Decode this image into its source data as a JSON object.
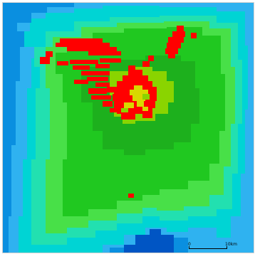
{
  "map": {
    "legend_scale": {
      "start_label": "0",
      "end_label": "10km"
    },
    "colors": {
      "deep_water": "#0055c4",
      "blue": "#0a8fe0",
      "light_blue": "#2fb2f0",
      "cyan": "#00d4d4",
      "teal": "#22e0b0",
      "light_green": "#48e048",
      "green": "#20c820",
      "dark_green": "#1db01d",
      "yellow_green": "#8ad400",
      "yellow": "#d8d800",
      "red": "#ff0000"
    }
  }
}
